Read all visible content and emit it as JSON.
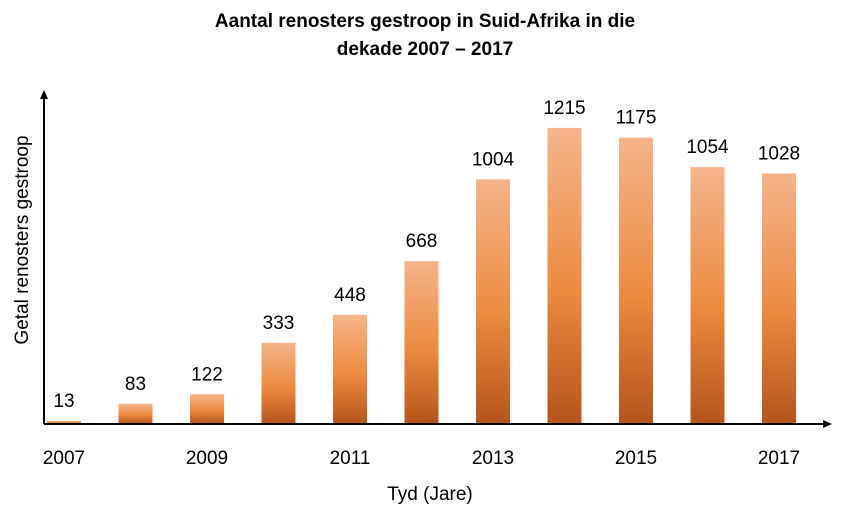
{
  "chart_data": {
    "type": "bar",
    "title_lines": [
      "Aantal renosters gestroop in Suid-Afrika in die",
      "dekade 2007 – 2017"
    ],
    "xlabel": "Tyd (Jare)",
    "ylabel": "Getal renosters gestroop",
    "categories": [
      "2007",
      "2008",
      "2009",
      "2010",
      "2011",
      "2012",
      "2013",
      "2014",
      "2015",
      "2016",
      "2017"
    ],
    "x_tick_labels": [
      "2007",
      "2009",
      "2011",
      "2013",
      "2015",
      "2017"
    ],
    "values": [
      13,
      83,
      122,
      333,
      448,
      668,
      1004,
      1215,
      1175,
      1054,
      1028
    ],
    "data_labels": [
      "13",
      "83",
      "122",
      "333",
      "448",
      "668",
      "1004",
      "1215",
      "1175",
      "1054",
      "1028"
    ],
    "ylim": [
      0,
      1350
    ],
    "grid": false,
    "legend": "none",
    "colors": {
      "bar_top": "#f4b48a",
      "bar_mid": "#ec8a3f",
      "bar_bottom": "#b5541b",
      "axis": "#000000"
    }
  }
}
